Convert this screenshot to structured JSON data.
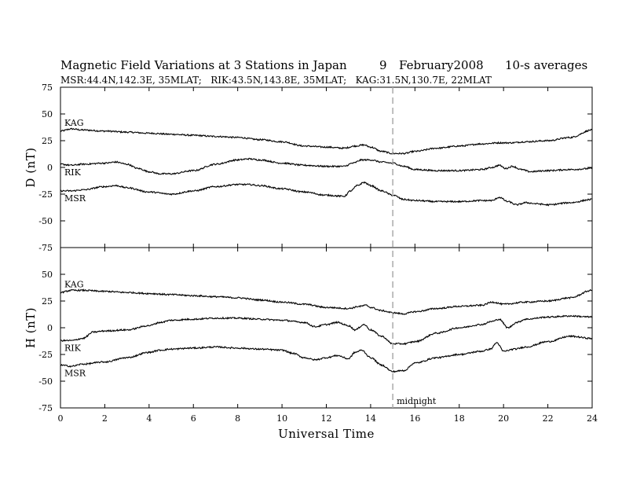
{
  "header": {
    "title": "Magnetic Field Variations at 3 Stations in Japan",
    "day": "9",
    "month_year": "February2008",
    "averaging": "10-s averages",
    "stations_line": "MSR:44.4N,142.3E, 35MLAT;   RIK:43.5N,143.8E, 35MLAT;   KAG:31.5N,130.7E, 22MLAT"
  },
  "colors": {
    "trace": "#000000",
    "marker": "#aaaaaa",
    "frame": "#000000"
  },
  "chart_data": [
    {
      "type": "line",
      "panel": "top",
      "ylabel": "D (nT)",
      "ylim": [
        -75,
        75
      ],
      "yticks": [
        75,
        50,
        25,
        0,
        -25,
        -50,
        -75
      ],
      "xlim": [
        0,
        24
      ],
      "grid": false,
      "series": [
        {
          "name": "KAG",
          "x": [
            0,
            0.5,
            1,
            2,
            3,
            4,
            5,
            6,
            7,
            8,
            9,
            10,
            11,
            12,
            12.8,
            13.3,
            13.7,
            14,
            14.5,
            15,
            15.5,
            16,
            17,
            18,
            19,
            19.8,
            20.3,
            21,
            22,
            23,
            24
          ],
          "y": [
            34,
            36,
            35,
            34,
            33,
            32,
            31,
            30,
            29,
            28,
            26,
            24,
            20,
            19,
            18,
            20,
            21,
            19,
            15,
            13,
            13,
            15,
            18,
            20,
            22,
            23,
            23,
            24,
            25,
            28,
            35
          ]
        },
        {
          "name": "RIK",
          "x": [
            0,
            0.5,
            1,
            2,
            2.5,
            3,
            3.5,
            4,
            4.5,
            5,
            6,
            7,
            8,
            8.5,
            9,
            10,
            11,
            12,
            12.8,
            13.2,
            13.6,
            14,
            14.5,
            15,
            15.5,
            16,
            17,
            18,
            19,
            19.5,
            19.8,
            20.1,
            20.4,
            20.8,
            21.2,
            22,
            23,
            24
          ],
          "y": [
            3,
            2,
            3,
            4,
            5,
            3,
            -1,
            -4,
            -6,
            -6,
            -3,
            3,
            7,
            8,
            7,
            4,
            2,
            1,
            1,
            4,
            7,
            7,
            5,
            4,
            1,
            -2,
            -3,
            -3,
            -2,
            0,
            2,
            -1,
            1,
            -2,
            -4,
            -3,
            -2,
            -1
          ]
        },
        {
          "name": "MSR",
          "x": [
            0,
            0.5,
            1,
            2,
            2.5,
            3,
            4,
            5,
            6,
            7,
            8,
            8.5,
            9,
            10,
            11,
            12,
            12.8,
            13.1,
            13.4,
            13.7,
            14,
            14.5,
            15,
            15.5,
            16,
            17,
            18,
            19,
            19.5,
            19.8,
            20.2,
            20.6,
            21,
            21.5,
            22,
            23,
            24
          ],
          "y": [
            -22,
            -22,
            -21,
            -18,
            -17,
            -19,
            -23,
            -25,
            -22,
            -18,
            -16,
            -16,
            -17,
            -20,
            -23,
            -26,
            -27,
            -22,
            -17,
            -14,
            -17,
            -22,
            -26,
            -30,
            -31,
            -32,
            -32,
            -31,
            -31,
            -28,
            -32,
            -35,
            -33,
            -34,
            -35,
            -33,
            -30
          ]
        }
      ]
    },
    {
      "type": "line",
      "panel": "bottom",
      "ylabel": "H (nT)",
      "ylim": [
        -75,
        75
      ],
      "yticks": [
        50,
        25,
        0,
        -25,
        -50,
        -75
      ],
      "xlim": [
        0,
        24
      ],
      "xticks": [
        0,
        2,
        4,
        6,
        8,
        10,
        12,
        14,
        16,
        18,
        20,
        22,
        24
      ],
      "xlabel": "Universal Time",
      "grid": false,
      "marker_line": {
        "x": 15,
        "label": "midnight"
      },
      "series": [
        {
          "name": "KAG",
          "x": [
            0,
            0.5,
            1,
            2,
            3,
            4,
            5,
            6,
            7,
            8,
            9,
            10,
            11,
            12,
            13,
            13.5,
            13.8,
            14,
            14.5,
            15,
            15.5,
            16,
            17,
            18,
            19,
            19.5,
            20,
            21,
            22,
            23,
            24
          ],
          "y": [
            33,
            35,
            35,
            34,
            33,
            32,
            31,
            30,
            29,
            28,
            26,
            24,
            22,
            19,
            18,
            20,
            21,
            19,
            16,
            14,
            13,
            15,
            18,
            20,
            21,
            24,
            22,
            24,
            25,
            28,
            35
          ]
        },
        {
          "name": "RIK",
          "x": [
            0,
            0.5,
            1,
            1.5,
            2,
            3,
            4,
            4.5,
            5,
            6,
            7,
            8,
            9,
            10,
            11,
            11.5,
            12,
            12.5,
            13,
            13.3,
            13.7,
            14,
            14.5,
            15,
            15.5,
            16,
            17,
            18,
            19,
            19.5,
            19.8,
            20.2,
            20.6,
            21,
            22,
            23,
            24
          ],
          "y": [
            -12,
            -12,
            -10,
            -4,
            -3,
            -2,
            2,
            5,
            7,
            8,
            9,
            9,
            8,
            7,
            5,
            1,
            3,
            5,
            2,
            -2,
            3,
            -2,
            -8,
            -15,
            -15,
            -13,
            -5,
            0,
            3,
            6,
            8,
            0,
            5,
            8,
            10,
            11,
            10
          ]
        },
        {
          "name": "MSR",
          "x": [
            0,
            0.5,
            1,
            2,
            3,
            4,
            4.5,
            5,
            6,
            7,
            8,
            9,
            10,
            10.5,
            11,
            11.5,
            12,
            12.5,
            13,
            13.3,
            13.6,
            14,
            14.5,
            15,
            15.5,
            16,
            17,
            18,
            19,
            19.4,
            19.7,
            20,
            20.5,
            21,
            22,
            23,
            24
          ],
          "y": [
            -35,
            -36,
            -34,
            -32,
            -28,
            -23,
            -21,
            -20,
            -19,
            -18,
            -19,
            -20,
            -21,
            -24,
            -28,
            -30,
            -28,
            -26,
            -29,
            -23,
            -21,
            -28,
            -35,
            -41,
            -40,
            -33,
            -28,
            -25,
            -22,
            -20,
            -14,
            -22,
            -20,
            -18,
            -13,
            -8,
            -10
          ]
        }
      ]
    }
  ]
}
